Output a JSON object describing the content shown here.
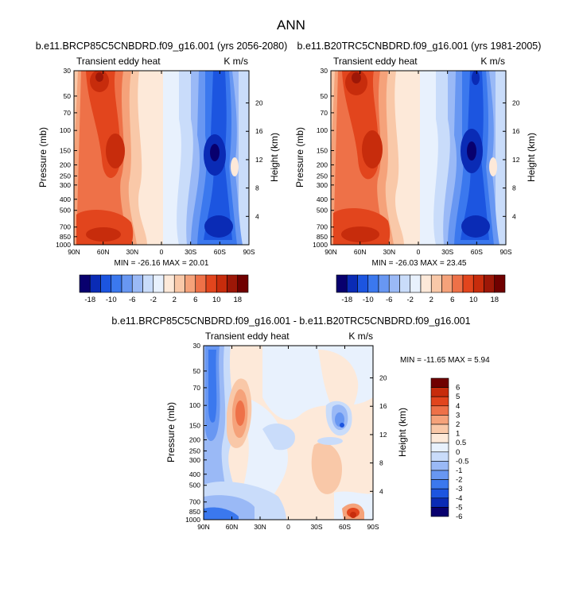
{
  "page_title": "ANN",
  "colors": {
    "scale": [
      "#08006e",
      "#0a2bb5",
      "#1c55e0",
      "#3b78ee",
      "#6897f2",
      "#9ab9f6",
      "#c9dcfa",
      "#e8f1fd",
      "#fde9d9",
      "#f9c8a8",
      "#f5a27a",
      "#ee7148",
      "#e2451d",
      "#c72c0c",
      "#9d1707",
      "#700000"
    ],
    "diff_scale": [
      "#08006e",
      "#0a2bb5",
      "#1c55e0",
      "#3b78ee",
      "#6897f2",
      "#9ab9f6",
      "#c9dcfa",
      "#e8f1fd",
      "#fde9d9",
      "#f9c8a8",
      "#f5a27a",
      "#ee7148",
      "#e2451d",
      "#c72c0c",
      "#700000"
    ]
  },
  "chart_data": [
    {
      "type": "heatmap",
      "title": "b.e11.BRCP85C5CNBDRD.f09_g16.001 (yrs 2056-2080)",
      "left_label": "Transient eddy heat",
      "right_label": "K m/s",
      "xlabel": "",
      "ylabel": "Pressure (mb)",
      "y2label": "Height (km)",
      "x_ticks": [
        "90N",
        "60N",
        "30N",
        "0",
        "30S",
        "60S",
        "90S"
      ],
      "x_tick_values": [
        90,
        60,
        30,
        0,
        -30,
        -60,
        -90
      ],
      "y_ticks": [
        "30",
        "50",
        "70",
        "100",
        "150",
        "200",
        "250",
        "300",
        "400",
        "500",
        "700",
        "850",
        "1000"
      ],
      "y_tick_values": [
        30,
        50,
        70,
        100,
        150,
        200,
        250,
        300,
        400,
        500,
        700,
        850,
        1000
      ],
      "y2_ticks": [
        "20",
        "16",
        "12",
        "8",
        "4"
      ],
      "y2_tick_values": [
        20,
        16,
        12,
        8,
        4
      ],
      "ylim": [
        1000,
        30
      ],
      "log_y": true,
      "xlim": [
        90,
        -90
      ],
      "stats": "MIN = -26.16  MAX = 20.01",
      "colorbar_labels": [
        "-18",
        "-10",
        "-6",
        "-2",
        "2",
        "6",
        "10",
        "18"
      ],
      "colorbar_levels": [
        -18,
        -14,
        -10,
        -8,
        -6,
        -4,
        -2,
        -1,
        1,
        2,
        4,
        6,
        8,
        10,
        14,
        18
      ],
      "extrema": {
        "max_lat": 60,
        "max_value": 20.01,
        "min_lat": -60,
        "min_value": -26.16
      }
    },
    {
      "type": "heatmap",
      "title": "b.e11.B20TRC5CNBDRD.f09_g16.001 (yrs 1981-2005)",
      "left_label": "Transient eddy heat",
      "right_label": "K m/s",
      "xlabel": "",
      "ylabel": "Pressure (mb)",
      "y2label": "Height (km)",
      "x_ticks": [
        "90N",
        "60N",
        "30N",
        "0",
        "30S",
        "60S",
        "90S"
      ],
      "x_tick_values": [
        90,
        60,
        30,
        0,
        -30,
        -60,
        -90
      ],
      "y_ticks": [
        "30",
        "50",
        "70",
        "100",
        "150",
        "200",
        "250",
        "300",
        "400",
        "500",
        "700",
        "850",
        "1000"
      ],
      "y_tick_values": [
        30,
        50,
        70,
        100,
        150,
        200,
        250,
        300,
        400,
        500,
        700,
        850,
        1000
      ],
      "y2_ticks": [
        "20",
        "16",
        "12",
        "8",
        "4"
      ],
      "y2_tick_values": [
        20,
        16,
        12,
        8,
        4
      ],
      "ylim": [
        1000,
        30
      ],
      "log_y": true,
      "xlim": [
        90,
        -90
      ],
      "stats": "MIN = -26.03  MAX = 23.45",
      "colorbar_labels": [
        "-18",
        "-10",
        "-6",
        "-2",
        "2",
        "6",
        "10",
        "18"
      ],
      "colorbar_levels": [
        -18,
        -14,
        -10,
        -8,
        -6,
        -4,
        -2,
        -1,
        1,
        2,
        4,
        6,
        8,
        10,
        14,
        18
      ],
      "extrema": {
        "max_lat": 60,
        "max_value": 23.45,
        "min_lat": -60,
        "min_value": -26.03
      }
    },
    {
      "type": "heatmap",
      "title": "b.e11.BRCP85C5CNBDRD.f09_g16.001 - b.e11.B20TRC5CNBDRD.f09_g16.001",
      "left_label": "Transient eddy heat",
      "right_label": "K m/s",
      "xlabel": "",
      "ylabel": "Pressure (mb)",
      "y2label": "Height (km)",
      "x_ticks": [
        "90N",
        "60N",
        "30N",
        "0",
        "30S",
        "60S",
        "90S"
      ],
      "x_tick_values": [
        90,
        60,
        30,
        0,
        -30,
        -60,
        -90
      ],
      "y_ticks": [
        "30",
        "50",
        "70",
        "100",
        "150",
        "200",
        "250",
        "300",
        "400",
        "500",
        "700",
        "850",
        "1000"
      ],
      "y_tick_values": [
        30,
        50,
        70,
        100,
        150,
        200,
        250,
        300,
        400,
        500,
        700,
        850,
        1000
      ],
      "y2_ticks": [
        "20",
        "16",
        "12",
        "8",
        "4"
      ],
      "y2_tick_values": [
        20,
        16,
        12,
        8,
        4
      ],
      "ylim": [
        1000,
        30
      ],
      "log_y": true,
      "xlim": [
        90,
        -90
      ],
      "stats": "MIN = -11.65  MAX =   5.94",
      "colorbar_labels": [
        "6",
        "5",
        "4",
        "3",
        "2",
        "1",
        "0.5",
        "0",
        "-0.5",
        "-1",
        "-2",
        "-3",
        "-4",
        "-5",
        "-6"
      ],
      "colorbar_levels": [
        6,
        5,
        4,
        3,
        2,
        1,
        0.5,
        0,
        -0.5,
        -1,
        -2,
        -3,
        -4,
        -5,
        -6
      ]
    }
  ]
}
